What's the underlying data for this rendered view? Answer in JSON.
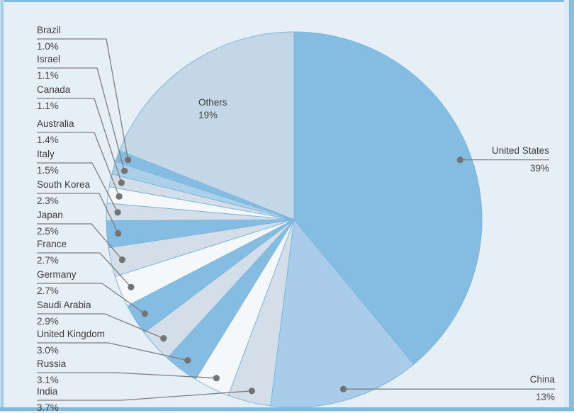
{
  "chart_data": {
    "type": "pie",
    "title": "",
    "unit": "%",
    "direction": "clockwise",
    "start_angle_deg": 0,
    "legend_position": "callout-labels",
    "slices": [
      {
        "label": "United States",
        "value": 39,
        "display": "39%",
        "color": "#84bce2",
        "label_side": "right"
      },
      {
        "label": "China",
        "value": 13,
        "display": "13%",
        "color": "#a8cce9",
        "label_side": "right"
      },
      {
        "label": "India",
        "value": 3.7,
        "display": "3.7%",
        "color": "#d3dee8",
        "label_side": "left"
      },
      {
        "label": "Russia",
        "value": 3.1,
        "display": "3.1%",
        "color": "#f5f8fb",
        "label_side": "left"
      },
      {
        "label": "United Kingdom",
        "value": 3.0,
        "display": "3.0%",
        "color": "#84bce2",
        "label_side": "left"
      },
      {
        "label": "Saudi Arabia",
        "value": 2.9,
        "display": "2.9%",
        "color": "#d3dee8",
        "label_side": "left"
      },
      {
        "label": "Germany",
        "value": 2.7,
        "display": "2.7%",
        "color": "#84bce2",
        "label_side": "left"
      },
      {
        "label": "France",
        "value": 2.7,
        "display": "2.7%",
        "color": "#f5f8fb",
        "label_side": "left"
      },
      {
        "label": "Japan",
        "value": 2.5,
        "display": "2.5%",
        "color": "#d3dee8",
        "label_side": "left"
      },
      {
        "label": "South Korea",
        "value": 2.3,
        "display": "2.3%",
        "color": "#84bce2",
        "label_side": "left"
      },
      {
        "label": "Italy",
        "value": 1.5,
        "display": "1.5%",
        "color": "#d3dee8",
        "label_side": "left"
      },
      {
        "label": "Australia",
        "value": 1.4,
        "display": "1.4%",
        "color": "#f5f8fb",
        "label_side": "left"
      },
      {
        "label": "Canada",
        "value": 1.1,
        "display": "1.1%",
        "color": "#d3dee8",
        "label_side": "left"
      },
      {
        "label": "Israel",
        "value": 1.1,
        "display": "1.1%",
        "color": "#abd0ea",
        "label_side": "left"
      },
      {
        "label": "Brazil",
        "value": 1.0,
        "display": "1.0%",
        "color": "#84bce2",
        "label_side": "left"
      },
      {
        "label": "Others",
        "value": 19,
        "display": "19%",
        "color": "#c4d7e6",
        "label_side": "inside"
      }
    ],
    "colors": {
      "panel_background": "#e6eff6",
      "frame_strip": "#7fb9df",
      "slice_stroke": "#7db6dd",
      "leader_line": "#7d7d7d",
      "leader_dot": "#737373",
      "text": "#3b3b3b"
    }
  }
}
